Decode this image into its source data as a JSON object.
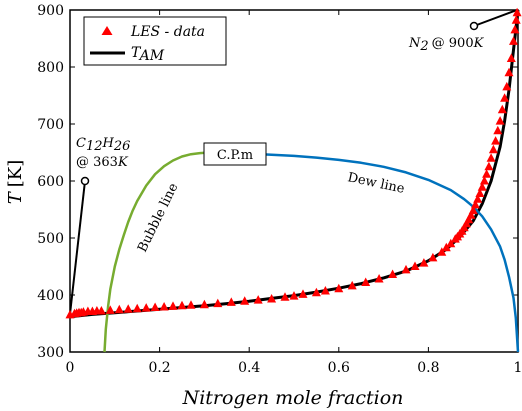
{
  "chart_data": {
    "type": "line",
    "xlabel": "Nitrogen mole fraction",
    "ylabel_main": "T",
    "ylabel_unit": "[K]",
    "xlim": [
      0,
      1
    ],
    "ylim": [
      300,
      900
    ],
    "x_ticks": [
      0,
      0.2,
      0.4,
      0.6,
      0.8,
      1
    ],
    "x_tick_labels": [
      "0",
      "0.2",
      "0.4",
      "0.6",
      "0.8",
      "1"
    ],
    "y_ticks": [
      300,
      400,
      500,
      600,
      700,
      800,
      900
    ],
    "y_tick_labels": [
      "300",
      "400",
      "500",
      "600",
      "700",
      "800",
      "900"
    ],
    "grid": false,
    "legend": {
      "position": "top-left",
      "entries": [
        {
          "label": "LES - data",
          "style": "marker",
          "color": "#ff0000"
        },
        {
          "label_main": "T",
          "label_sub": "AM",
          "style": "line",
          "color": "#000000"
        }
      ]
    },
    "series": [
      {
        "name": "LES - data",
        "style": "marker",
        "color": "#ff0000",
        "x": [
          0.0,
          0.01,
          0.015,
          0.02,
          0.025,
          0.03,
          0.04,
          0.05,
          0.06,
          0.07,
          0.09,
          0.11,
          0.13,
          0.15,
          0.17,
          0.19,
          0.21,
          0.23,
          0.25,
          0.27,
          0.3,
          0.33,
          0.36,
          0.39,
          0.42,
          0.45,
          0.48,
          0.5,
          0.52,
          0.55,
          0.57,
          0.6,
          0.63,
          0.66,
          0.69,
          0.72,
          0.75,
          0.77,
          0.79,
          0.81,
          0.83,
          0.84,
          0.85,
          0.86,
          0.865,
          0.87,
          0.875,
          0.88,
          0.885,
          0.89,
          0.895,
          0.9,
          0.905,
          0.91,
          0.915,
          0.92,
          0.925,
          0.93,
          0.935,
          0.94,
          0.945,
          0.95,
          0.955,
          0.96,
          0.965,
          0.97,
          0.975,
          0.98,
          0.985,
          0.99,
          0.993,
          0.996,
          0.998
        ],
        "y": [
          365,
          367,
          368,
          369,
          369,
          370,
          371,
          371,
          372,
          372,
          373,
          374,
          375,
          376,
          377,
          378,
          379,
          380,
          381,
          382,
          383,
          385,
          387,
          389,
          391,
          393,
          396,
          398,
          401,
          404,
          407,
          411,
          416,
          422,
          428,
          436,
          444,
          450,
          456,
          465,
          475,
          483,
          490,
          498,
          502,
          507,
          512,
          518,
          525,
          532,
          540,
          548,
          558,
          568,
          578,
          589,
          600,
          612,
          625,
          640,
          655,
          670,
          688,
          705,
          725,
          745,
          765,
          790,
          815,
          845,
          865,
          882,
          895
        ]
      },
      {
        "name_main": "T",
        "name_sub": "AM",
        "style": "line",
        "color": "#000000",
        "x": [
          0.0,
          0.05,
          0.1,
          0.15,
          0.2,
          0.25,
          0.3,
          0.35,
          0.4,
          0.45,
          0.5,
          0.55,
          0.6,
          0.65,
          0.7,
          0.75,
          0.8,
          0.84,
          0.87,
          0.9,
          0.92,
          0.94,
          0.96,
          0.97,
          0.98,
          0.99,
          0.995,
          1.0
        ],
        "y": [
          362,
          366,
          369,
          372,
          375,
          378,
          381,
          385,
          389,
          394,
          399,
          405,
          412,
          420,
          430,
          442,
          460,
          480,
          502,
          530,
          560,
          600,
          660,
          705,
          760,
          830,
          865,
          900
        ]
      },
      {
        "name": "Bubble line",
        "style": "line",
        "color": "#77ac30",
        "x": [
          0.077,
          0.08,
          0.085,
          0.09,
          0.1,
          0.11,
          0.12,
          0.13,
          0.14,
          0.15,
          0.17,
          0.19,
          0.21,
          0.23,
          0.25,
          0.27,
          0.29,
          0.31
        ],
        "y": [
          300,
          340,
          380,
          410,
          450,
          480,
          505,
          528,
          548,
          565,
          592,
          612,
          626,
          636,
          643,
          647,
          649,
          650
        ]
      },
      {
        "name": "Dew line",
        "style": "line",
        "color": "#0072bd",
        "x": [
          0.31,
          0.35,
          0.4,
          0.45,
          0.5,
          0.55,
          0.6,
          0.65,
          0.7,
          0.75,
          0.8,
          0.85,
          0.88,
          0.9,
          0.92,
          0.94,
          0.96,
          0.97,
          0.98,
          0.99,
          0.995,
          1.0
        ],
        "y": [
          650,
          649,
          648,
          646,
          644,
          641,
          637,
          632,
          625,
          615,
          602,
          584,
          568,
          555,
          538,
          515,
          485,
          462,
          432,
          395,
          360,
          300
        ]
      }
    ],
    "annotations": {
      "critical_point": {
        "label": "C.P.m",
        "x": 0.31,
        "y": 650
      },
      "bubble_label": {
        "label": "Bubble line"
      },
      "dew_label": {
        "label": "Dew line"
      },
      "dodecane_point": {
        "formula_main": "C",
        "formula_sub1": "12",
        "formula_mid": "H",
        "formula_sub2": "26",
        "at_text": "@ 363",
        "unit": "K",
        "x": 0.0,
        "y": 363
      },
      "nitrogen_point": {
        "formula_main": "N",
        "formula_sub": "2",
        "at_text": "@ 900",
        "unit": "K",
        "x": 1.0,
        "y": 900
      }
    }
  }
}
